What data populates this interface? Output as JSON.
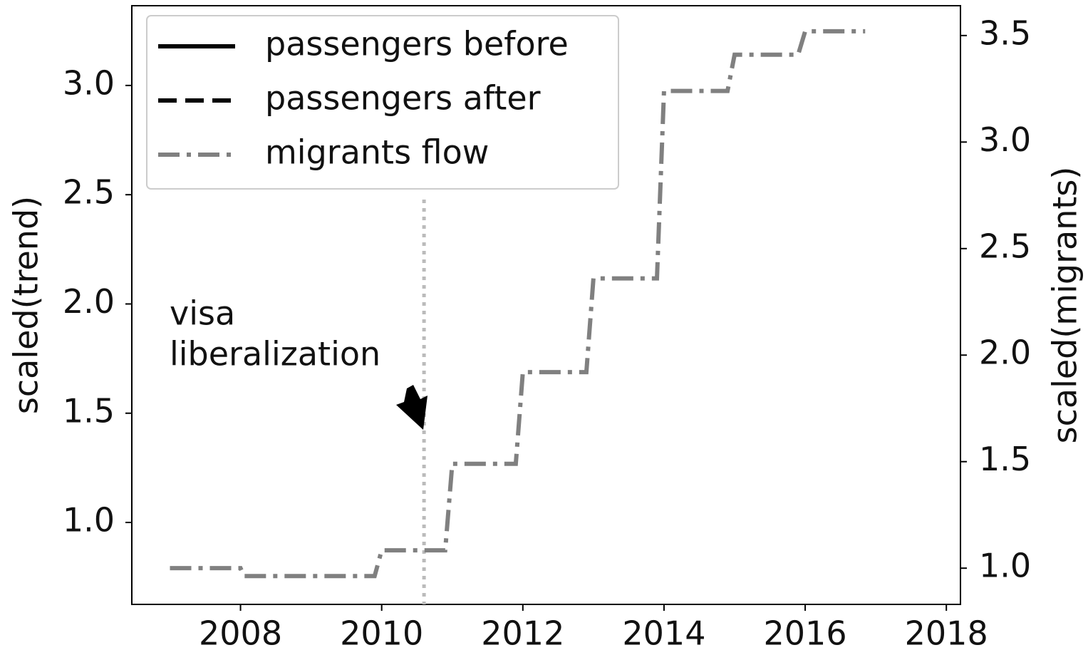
{
  "chart_data": {
    "type": "line",
    "ylabel": "scaled(trend)",
    "y2label": "scaled(migrants)",
    "xlim": [
      2006.46,
      2018.2
    ],
    "xticks": [
      2008,
      2010,
      2012,
      2014,
      2016,
      2018
    ],
    "ylim": [
      0.625,
      3.365
    ],
    "yticks": [
      {
        "value": 1.0,
        "label": "1.0"
      },
      {
        "value": 1.5,
        "label": "1.5"
      },
      {
        "value": 2.0,
        "label": "2.0"
      },
      {
        "value": 2.5,
        "label": "2.5"
      },
      {
        "value": 3.0,
        "label": "3.0"
      }
    ],
    "y2lim": [
      0.83,
      3.64
    ],
    "y2ticks": [
      {
        "value": 1.0,
        "label": "1.0"
      },
      {
        "value": 1.5,
        "label": "1.5"
      },
      {
        "value": 2.0,
        "label": "2.0"
      },
      {
        "value": 2.5,
        "label": "2.5"
      },
      {
        "value": 3.0,
        "label": "3.0"
      },
      {
        "value": 3.5,
        "label": "3.5"
      }
    ],
    "legend": "upper left",
    "series": [
      {
        "name": "passengers before",
        "color": "#000000",
        "dash": "solid",
        "x": [],
        "values": []
      },
      {
        "name": "passengers after",
        "color": "#000000",
        "dash": "dashed",
        "x": [],
        "values": []
      },
      {
        "name": "migrants flow",
        "color": "#808080",
        "dash": "dashdot",
        "axis": "y2",
        "x": [
          2007,
          2008,
          2008.05,
          2009.9,
          2010,
          2010.9,
          2011,
          2011.9,
          2012,
          2012.9,
          2013,
          2013.9,
          2014,
          2014.9,
          2015,
          2015.9,
          2016,
          2016.85
        ],
        "values": [
          1.0,
          1.0,
          0.963,
          0.963,
          1.084,
          1.084,
          1.49,
          1.49,
          1.92,
          1.92,
          2.36,
          2.36,
          3.24,
          3.24,
          3.41,
          3.41,
          3.52,
          3.52
        ]
      }
    ],
    "vline_x": 2010.6,
    "annotation": [
      "visa",
      "liberalization"
    ]
  }
}
